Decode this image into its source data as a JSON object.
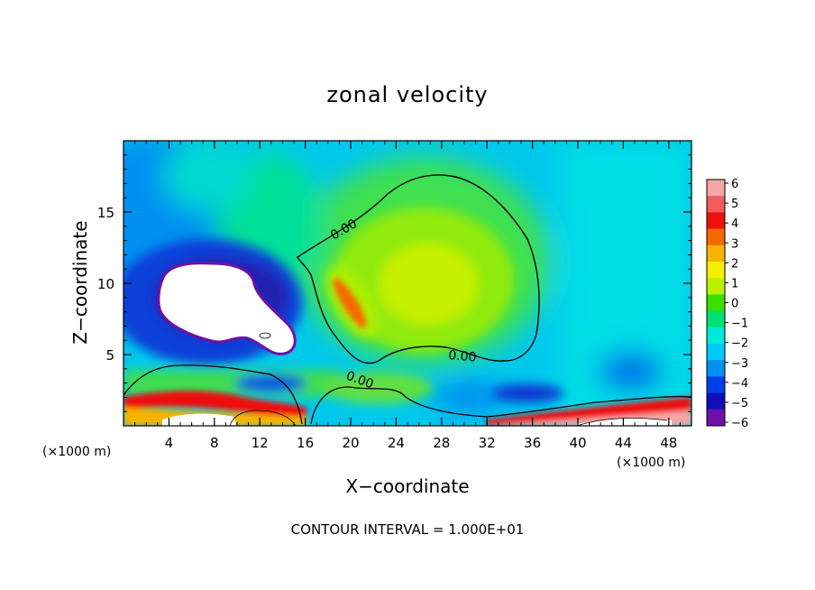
{
  "chart_data": {
    "type": "heatmap",
    "title": "zonal velocity",
    "xlabel": "X−coordinate",
    "ylabel": "Z−coordinate",
    "x_unit_left": "(×1000 m)",
    "x_unit_right": "(×1000 m)",
    "footer": "CONTOUR INTERVAL = 1.000E+01",
    "xlim": [
      0,
      50
    ],
    "ylim": [
      0,
      20
    ],
    "xticks": [
      4,
      8,
      12,
      16,
      20,
      24,
      28,
      32,
      36,
      40,
      44,
      48
    ],
    "yticks": [
      5,
      10,
      15
    ],
    "colorbar": {
      "ticks": [
        6,
        5,
        4,
        3,
        2,
        1,
        0,
        -1,
        -2,
        -3,
        -4,
        -5,
        -6
      ],
      "tick_labels": [
        "6",
        "5",
        "4",
        "3",
        "2",
        "1",
        "0",
        "−1",
        "−2",
        "−3",
        "−4",
        "−5",
        "−6"
      ],
      "colors_top_to_bottom": [
        "#f4a6a6",
        "#f25c5c",
        "#ee1111",
        "#f46a00",
        "#f8b200",
        "#f5f000",
        "#b8f000",
        "#38e000",
        "#00e070",
        "#00e8d8",
        "#00c8f8",
        "#0090f0",
        "#0040e8",
        "#1010b8",
        "#7010a8"
      ]
    },
    "contour_labels": [
      "0.00",
      "0.00",
      "0.00"
    ],
    "features": [
      {
        "name": "strong easterly core (white, < -6)",
        "x_range": [
          3,
          15
        ],
        "z_range": [
          5,
          11.5
        ]
      },
      {
        "name": "positive maximum",
        "x": 27,
        "z": 10,
        "approx_value": 1.5
      },
      {
        "name": "positive streak",
        "x": 19,
        "z": 9,
        "approx_value": 3
      },
      {
        "name": "near-surface westerly jet (red)",
        "x_range": [
          0,
          50
        ],
        "z_range": [
          0,
          2.5
        ]
      }
    ]
  }
}
